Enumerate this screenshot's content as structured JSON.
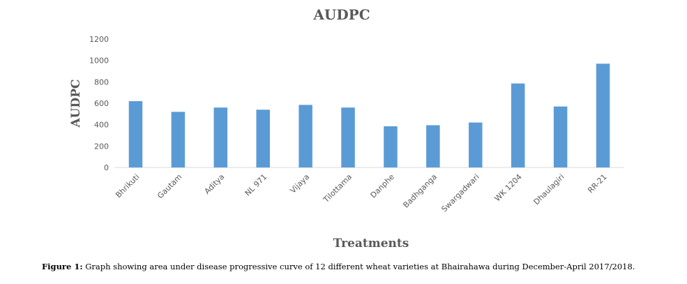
{
  "chart_data": {
    "type": "bar",
    "title": "AUDPC",
    "xlabel": "Treatments",
    "ylabel": "AUDPC",
    "ylim": [
      0,
      1200
    ],
    "yticks": [
      0,
      200,
      400,
      600,
      800,
      1000,
      1200
    ],
    "grid": false,
    "categories": [
      "Bhrikuti",
      "Gautam",
      "Aditya",
      "NL 971",
      "Vijaya",
      "Tilottama",
      "Danphe",
      "Badhganga",
      "Swargadwari",
      "WK 1204",
      "Dhaulagiri",
      "RR-21"
    ],
    "values": [
      620,
      520,
      560,
      540,
      585,
      560,
      385,
      395,
      420,
      785,
      570,
      970
    ],
    "bar_color": "#5B9BD5"
  },
  "caption": {
    "label": "Figure 1:",
    "text": " Graph showing area under disease progressive curve of 12 different wheat varieties at Bhairahawa during December-April 2017/2018."
  }
}
